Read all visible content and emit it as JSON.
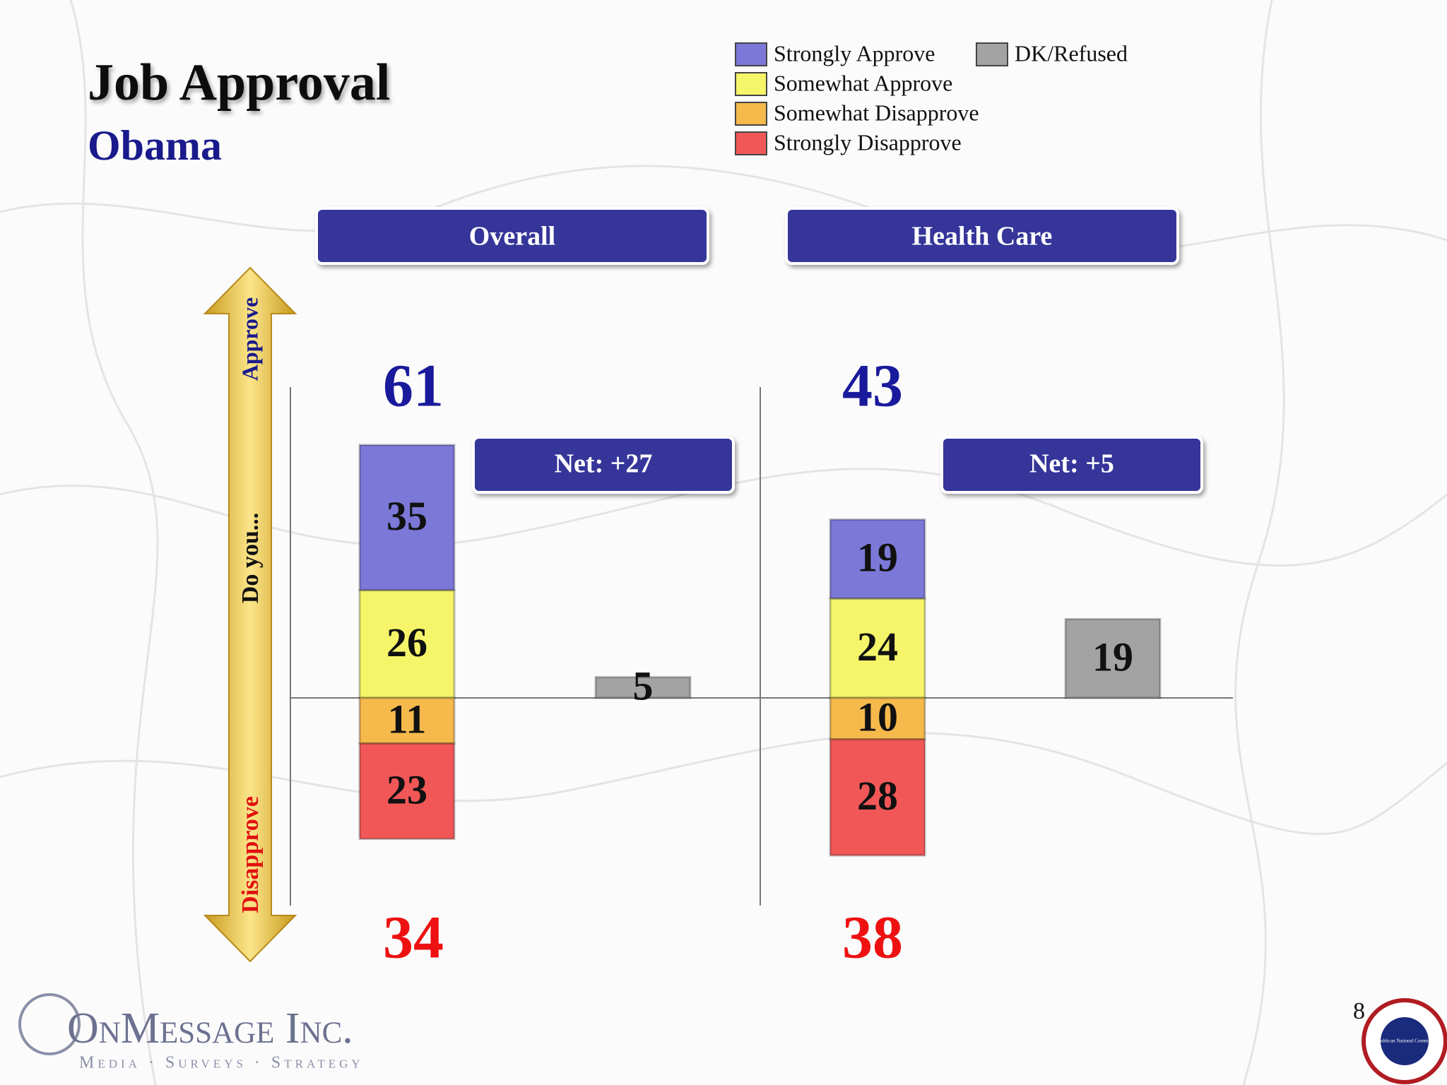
{
  "chart_data": {
    "type": "diverging-stacked-bar",
    "title": "Job Approval",
    "subtitle": "Obama",
    "categories": [
      "Overall",
      "Health Care"
    ],
    "series": [
      {
        "name": "Strongly Approve",
        "color": "#7b78d8",
        "side": "approve",
        "values": [
          35,
          19
        ]
      },
      {
        "name": "Somewhat Approve",
        "color": "#f6f56a",
        "side": "approve",
        "values": [
          26,
          24
        ]
      },
      {
        "name": "Somewhat Disapprove",
        "color": "#f6b94c",
        "side": "disapprove",
        "values": [
          11,
          10
        ]
      },
      {
        "name": "Strongly Disapprove",
        "color": "#f25757",
        "side": "disapprove",
        "values": [
          23,
          28
        ]
      },
      {
        "name": "DK/Refused",
        "color": "#a3a3a3",
        "side": "separate",
        "values": [
          5,
          19
        ]
      }
    ],
    "approve_totals": [
      61,
      43
    ],
    "disapprove_totals": [
      34,
      38
    ],
    "net_labels": [
      "Net: +27",
      "Net: +5"
    ],
    "axis_labels": {
      "top": "Approve",
      "middle": "Do you...",
      "bottom": "Disapprove"
    },
    "page_number": "8",
    "logo": {
      "name": "OnMessage Inc.",
      "tagline": "Media · Surveys · Strategy"
    },
    "seal": "Republican National Committee"
  }
}
